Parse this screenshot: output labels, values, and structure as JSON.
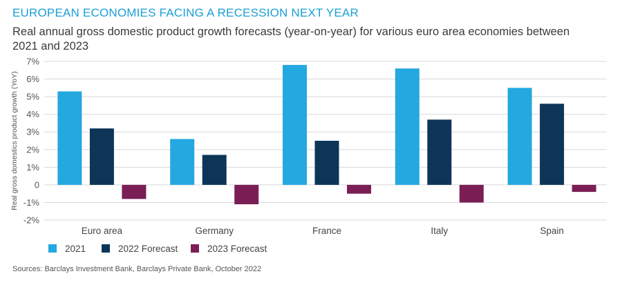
{
  "header": {
    "title": "EUROPEAN ECONOMIES FACING A RECESSION NEXT YEAR",
    "subtitle": "Real annual gross domestic product growth forecasts (year-on-year) for various euro area economies between 2021 and 2023"
  },
  "source": "Sources: Barclays Investment Bank, Barclays Private Bank, October 2022",
  "chart_data": {
    "type": "bar",
    "categories": [
      "Euro area",
      "Germany",
      "France",
      "Italy",
      "Spain"
    ],
    "series": [
      {
        "name": "2021",
        "color": "#23a8e0",
        "values": [
          5.3,
          2.6,
          6.8,
          6.6,
          5.5
        ]
      },
      {
        "name": "2022 Forecast",
        "color": "#0d3558",
        "values": [
          3.2,
          1.7,
          2.5,
          3.7,
          4.6
        ]
      },
      {
        "name": "2023 Forecast",
        "color": "#7b1e56",
        "values": [
          -0.8,
          -1.1,
          -0.5,
          -1.0,
          -0.4
        ]
      }
    ],
    "ylabel": "Real gross domestics product growth (YoY)",
    "ylim": [
      -2,
      7
    ],
    "yticks": [
      -2,
      -1,
      0,
      1,
      2,
      3,
      4,
      5,
      6,
      7
    ],
    "ytick_labels": [
      "-2%",
      "-1%",
      "0",
      "1%",
      "2%",
      "3%",
      "4%",
      "5%",
      "6%",
      "7%"
    ],
    "grid": "horizontal",
    "legend_position": "bottom-left"
  }
}
